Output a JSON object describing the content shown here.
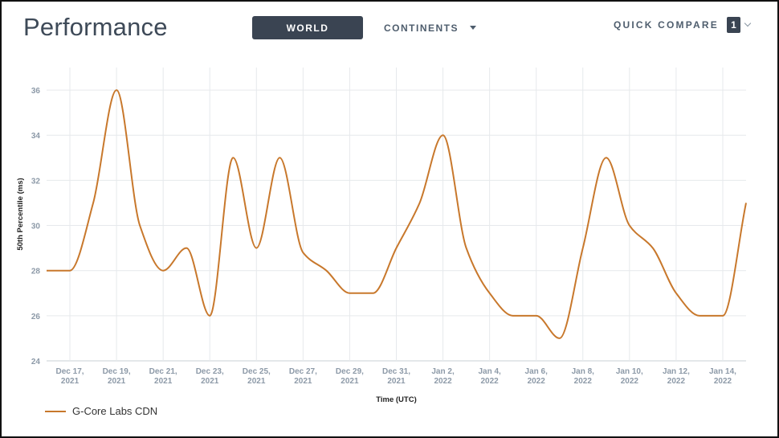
{
  "header": {
    "title": "Performance",
    "world_label": "WORLD",
    "continents_label": "CONTINENTS",
    "quick_compare_label": "QUICK COMPARE",
    "quick_compare_count": "1"
  },
  "colors": {
    "series": "#c8782c",
    "active_button": "#3a4452"
  },
  "chart_data": {
    "type": "line",
    "title": "",
    "xlabel": "Time (UTC)",
    "ylabel": "50th Percentile (ms)",
    "ylim": [
      24,
      37
    ],
    "yticks": [
      24,
      26,
      28,
      30,
      32,
      34,
      36
    ],
    "x_range": [
      0,
      30
    ],
    "xticks": [
      {
        "x": 1,
        "line1": "Dec 17,",
        "line2": "2021"
      },
      {
        "x": 3,
        "line1": "Dec 19,",
        "line2": "2021"
      },
      {
        "x": 5,
        "line1": "Dec 21,",
        "line2": "2021"
      },
      {
        "x": 7,
        "line1": "Dec 23,",
        "line2": "2021"
      },
      {
        "x": 9,
        "line1": "Dec 25,",
        "line2": "2021"
      },
      {
        "x": 11,
        "line1": "Dec 27,",
        "line2": "2021"
      },
      {
        "x": 13,
        "line1": "Dec 29,",
        "line2": "2021"
      },
      {
        "x": 15,
        "line1": "Dec 31,",
        "line2": "2021"
      },
      {
        "x": 17,
        "line1": "Jan 2,",
        "line2": "2022"
      },
      {
        "x": 19,
        "line1": "Jan 4,",
        "line2": "2022"
      },
      {
        "x": 21,
        "line1": "Jan 6,",
        "line2": "2022"
      },
      {
        "x": 23,
        "line1": "Jan 8,",
        "line2": "2022"
      },
      {
        "x": 25,
        "line1": "Jan 10,",
        "line2": "2022"
      },
      {
        "x": 27,
        "line1": "Jan 12,",
        "line2": "2022"
      },
      {
        "x": 29,
        "line1": "Jan 14,",
        "line2": "2022"
      }
    ],
    "series": [
      {
        "name": "G-Core Labs CDN",
        "x": [
          0,
          1,
          2,
          3,
          4,
          5,
          6,
          7,
          8,
          9,
          10,
          11,
          12,
          13,
          14,
          15,
          16,
          17,
          18,
          19,
          20,
          21,
          22,
          23,
          24,
          25,
          26,
          27,
          28,
          29,
          30
        ],
        "values": [
          28,
          28,
          31,
          36,
          30,
          28,
          29,
          26,
          33,
          29,
          33,
          28.8,
          28,
          27,
          27,
          29,
          31,
          34,
          29,
          27,
          26,
          26,
          25,
          29,
          33,
          30,
          29,
          27,
          26,
          26,
          31
        ]
      }
    ]
  }
}
